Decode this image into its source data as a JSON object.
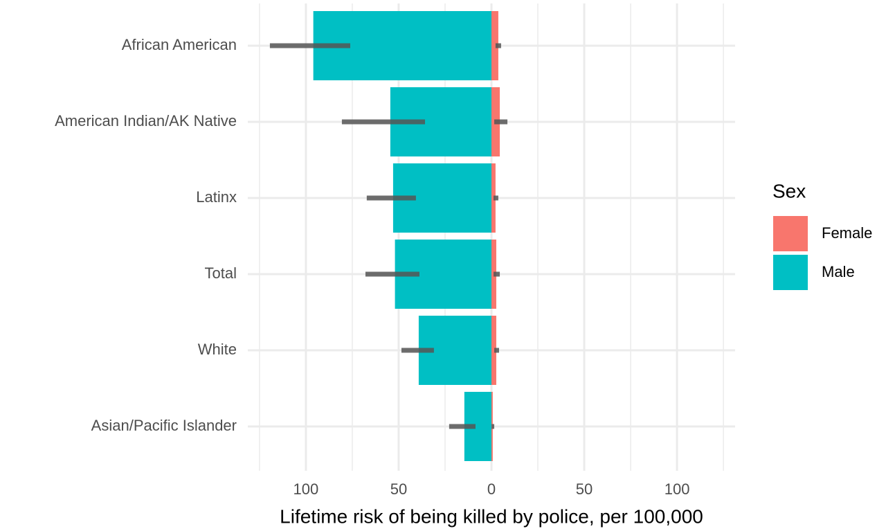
{
  "chart_data": {
    "type": "diverging-bar",
    "x_label": "Lifetime risk of being killed by police, per 100,000",
    "categories": [
      "African American",
      "American Indian/AK Native",
      "Latinx",
      "Total",
      "White",
      "Asian/Pacific Islander"
    ],
    "series": [
      {
        "name": "Female",
        "color": "#F8766D",
        "values": [
          3.7,
          4.5,
          2.2,
          2.6,
          2.6,
          0.7
        ],
        "ci": [
          [
            2.2,
            5.2
          ],
          [
            1.5,
            8.6
          ],
          [
            1.1,
            3.7
          ],
          [
            1.1,
            4.5
          ],
          [
            1.5,
            4.1
          ],
          [
            0.1,
            1.5
          ]
        ]
      },
      {
        "name": "Male",
        "color": "#00BFC4",
        "values": [
          -96,
          -54.5,
          -53,
          -52,
          -39.2,
          -14.6
        ],
        "ci": [
          [
            -119.4,
            -76.1
          ],
          [
            -80.6,
            -35.8
          ],
          [
            -67.2,
            -40.7
          ],
          [
            -67.9,
            -38.8
          ],
          [
            -48.5,
            -31
          ],
          [
            -22.8,
            -8.6
          ]
        ]
      }
    ],
    "error_color": "#555555",
    "xlim": [
      -131.3,
      131.3
    ],
    "xticks": [
      {
        "value": -100,
        "label": "100"
      },
      {
        "value": -50,
        "label": "50"
      },
      0,
      50,
      100
    ],
    "xminor": [
      -125,
      -75,
      -25,
      25,
      75,
      125
    ],
    "grid": true,
    "legend_title": "Sex",
    "legend_position": "right"
  }
}
